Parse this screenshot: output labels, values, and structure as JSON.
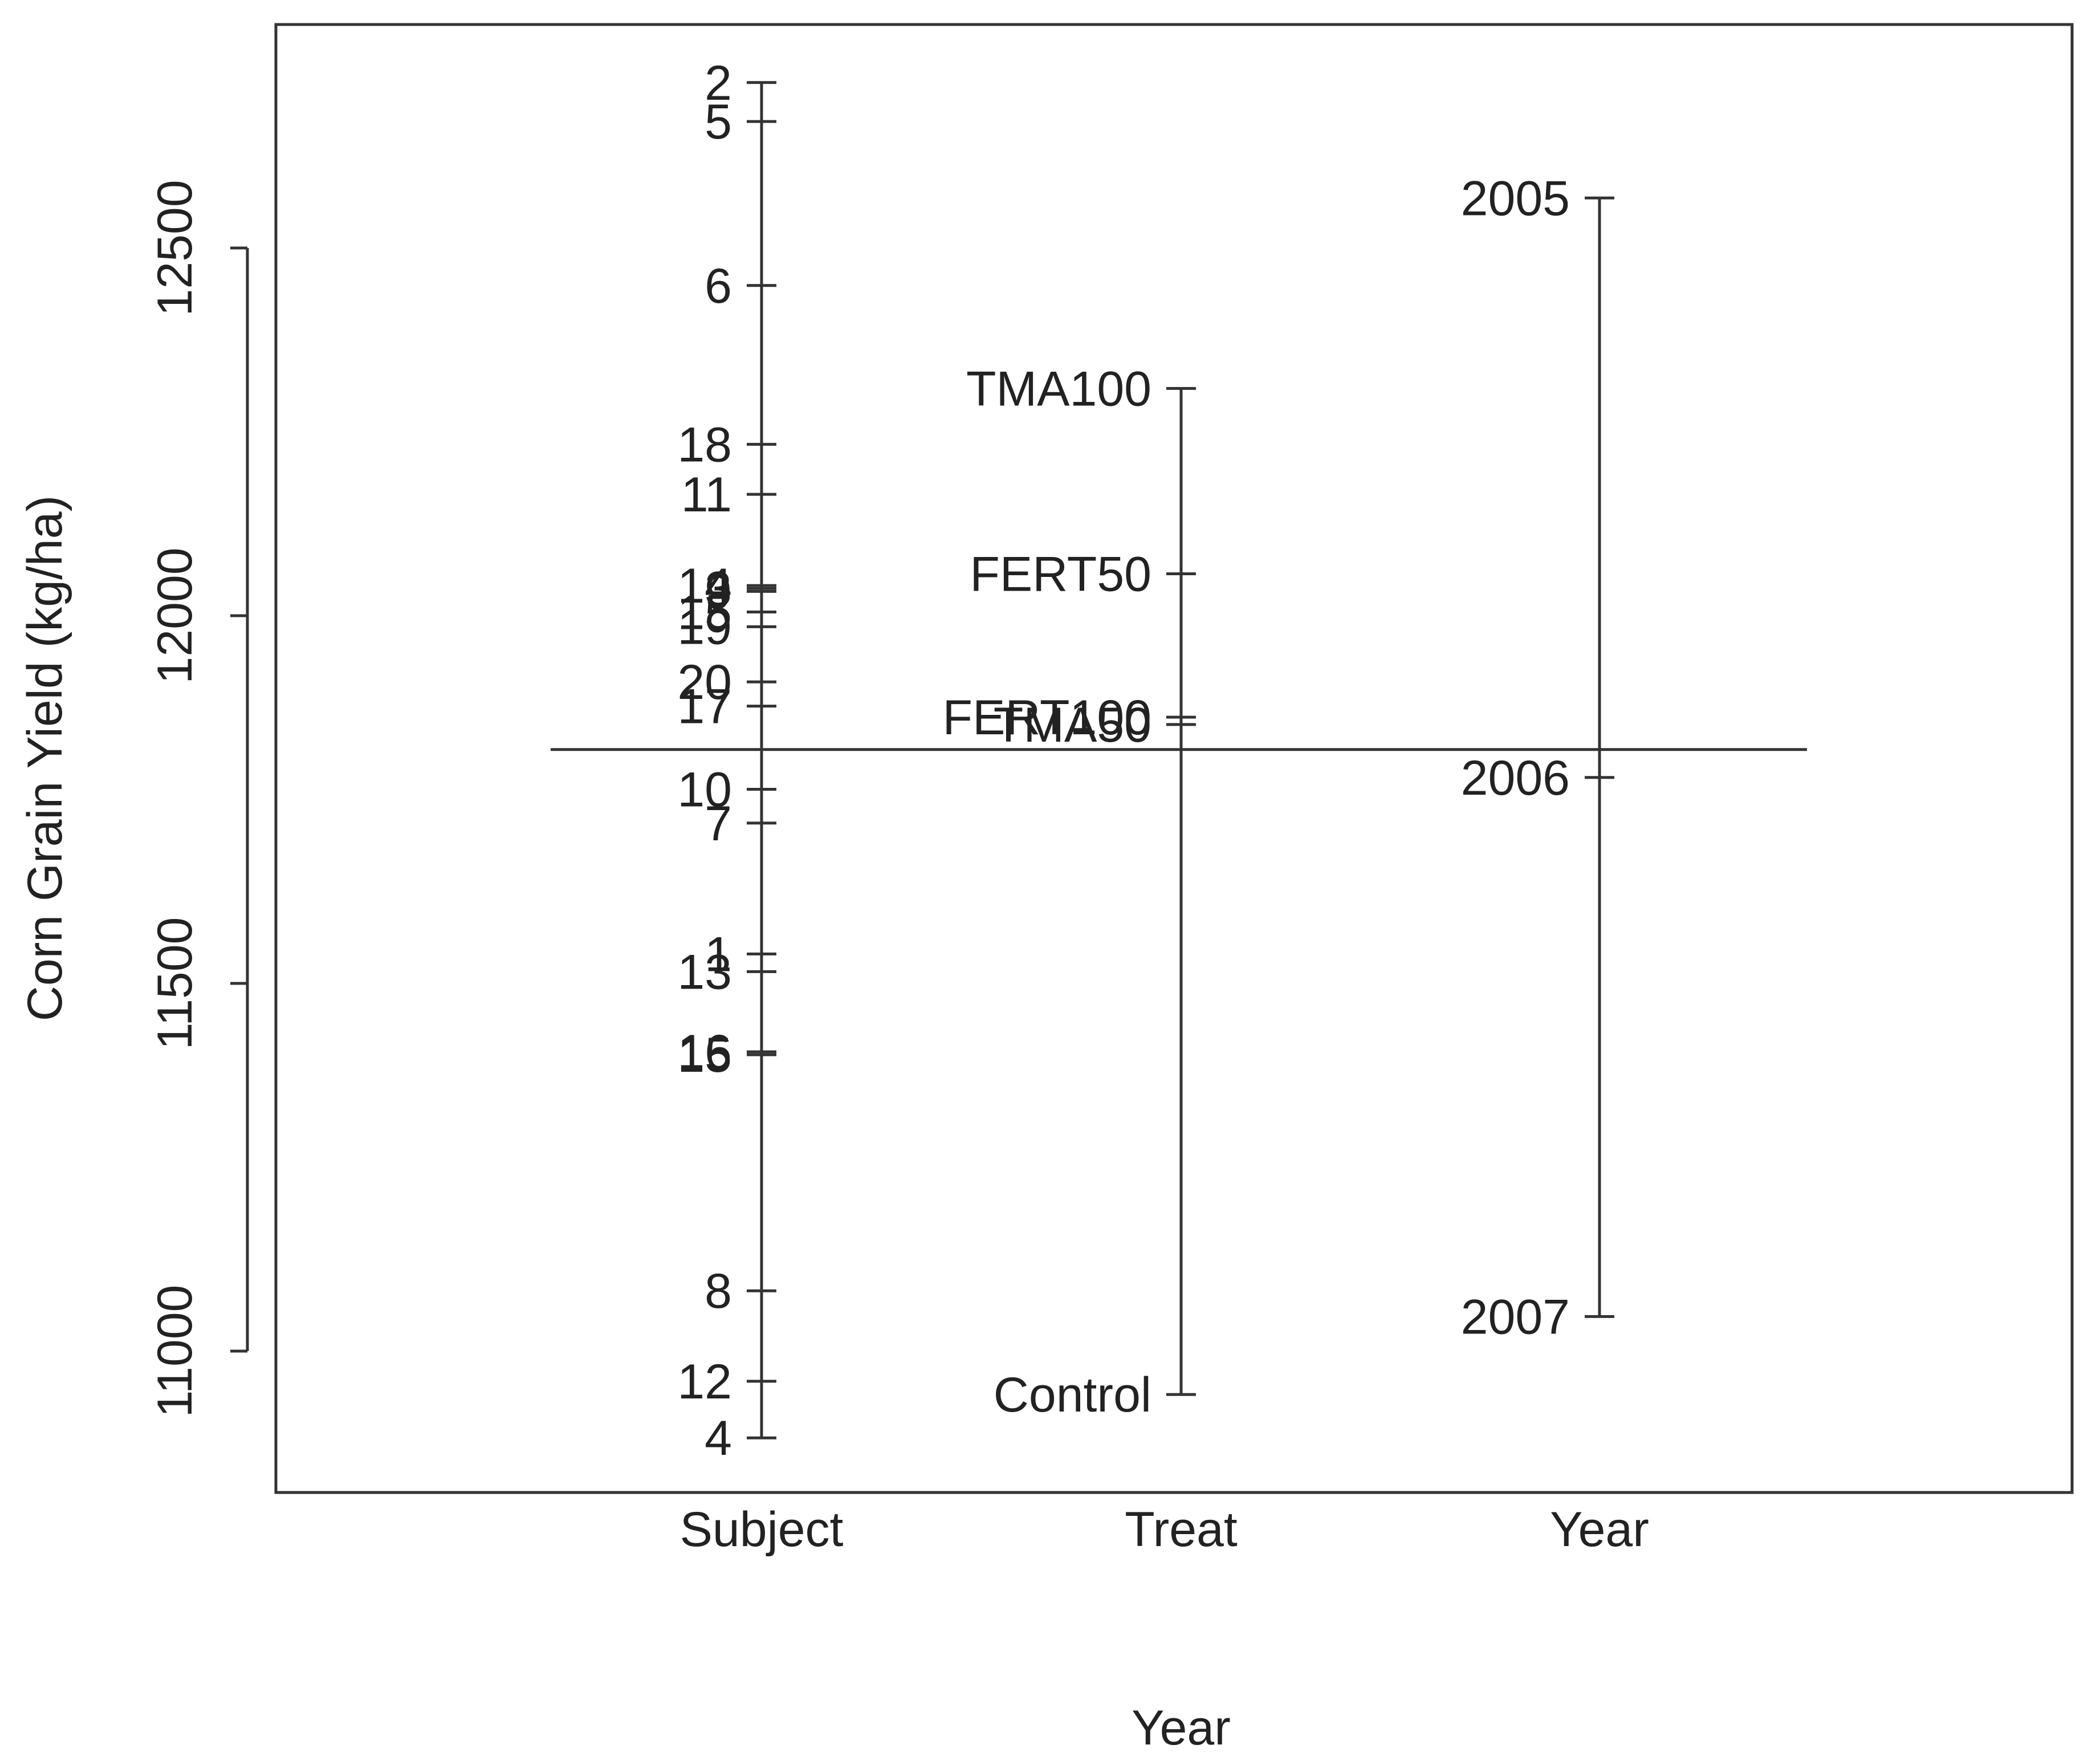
{
  "chart_data": {
    "type": "scatter",
    "subtype": "factor-means-plot",
    "xlabel": "Year",
    "ylabel": "Corn Grain Yield (kg/ha)",
    "ylim": [
      10820,
      12810
    ],
    "yticks": [
      11000,
      11500,
      12000,
      12500
    ],
    "grand_mean": 11818,
    "factors": [
      {
        "name": "Subject",
        "levels": [
          {
            "label": "2",
            "value": 12725
          },
          {
            "label": "5",
            "value": 12672
          },
          {
            "label": "6",
            "value": 12449
          },
          {
            "label": "18",
            "value": 12233
          },
          {
            "label": "11",
            "value": 12165
          },
          {
            "label": "14",
            "value": 12041
          },
          {
            "label": "3",
            "value": 12037
          },
          {
            "label": "9",
            "value": 12033
          },
          {
            "label": "15",
            "value": 12005
          },
          {
            "label": "19",
            "value": 11985
          },
          {
            "label": "20",
            "value": 11910
          },
          {
            "label": "17",
            "value": 11877
          },
          {
            "label": "10",
            "value": 11764
          },
          {
            "label": "7",
            "value": 11718
          },
          {
            "label": "1",
            "value": 11540
          },
          {
            "label": "13",
            "value": 11516
          },
          {
            "label": "16",
            "value": 11407
          },
          {
            "label": "15",
            "value": 11403
          },
          {
            "label": "8",
            "value": 11082
          },
          {
            "label": "12",
            "value": 10959
          },
          {
            "label": "4",
            "value": 10882
          }
        ]
      },
      {
        "name": "Treat",
        "levels": [
          {
            "label": "TMA100",
            "value": 12309
          },
          {
            "label": "FERT50",
            "value": 12057
          },
          {
            "label": "FERT100",
            "value": 11862
          },
          {
            "label": "TMA50",
            "value": 11852
          },
          {
            "label": "Control",
            "value": 10941
          }
        ]
      },
      {
        "name": "Year",
        "levels": [
          {
            "label": "2005",
            "value": 12568
          },
          {
            "label": "2006",
            "value": 11780
          },
          {
            "label": "2007",
            "value": 11047
          }
        ]
      }
    ],
    "line_color": "#333333",
    "text_color": "#222222"
  }
}
